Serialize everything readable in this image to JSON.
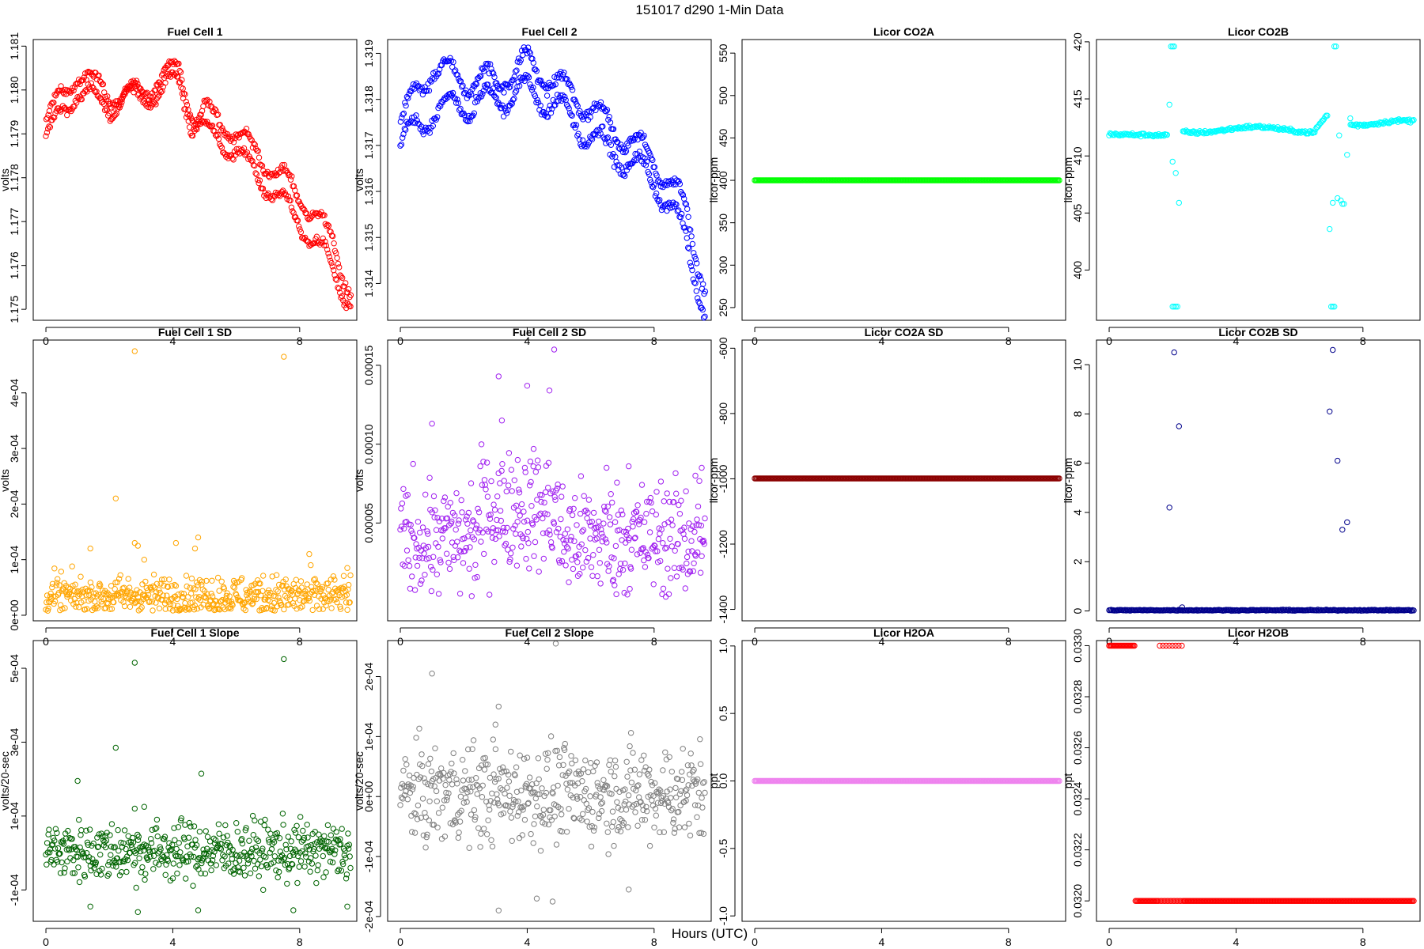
{
  "figure": {
    "title": "151017   d290   1-Min Data",
    "xlabel": "Hours (UTC)"
  },
  "chart_data": [
    {
      "type": "scatter",
      "title": "Fuel Cell 1",
      "ylabel": "volts",
      "color": "#ff0000",
      "xlim": [
        -0.4,
        9.8
      ],
      "xticks": [
        0,
        4,
        8
      ],
      "xtick_labels": [
        "0",
        "4",
        "8"
      ],
      "ylim": [
        1.17475,
        1.18115
      ],
      "yticks": [
        1.175,
        1.176,
        1.177,
        1.178,
        1.179,
        1.18,
        1.181
      ],
      "ytick_labels": [
        "1.175",
        "1.176",
        "1.177",
        "1.178",
        "1.179",
        "1.180",
        "1.181"
      ],
      "gen": {
        "kind": "curve2",
        "x0": 0,
        "x1": 9.6,
        "n": 290,
        "k1": [
          [
            0,
            1.1789
          ],
          [
            1,
            1.18
          ],
          [
            2,
            1.1796
          ],
          [
            3,
            1.18
          ],
          [
            4.2,
            1.1805
          ],
          [
            4.6,
            1.1795
          ],
          [
            5,
            1.1791
          ],
          [
            6,
            1.1786
          ],
          [
            7,
            1.1778
          ],
          [
            8,
            1.177
          ],
          [
            9,
            1.176
          ],
          [
            9.6,
            1.1751
          ]
        ],
        "k2": [
          [
            0,
            1.1793
          ],
          [
            1,
            1.1804
          ],
          [
            2,
            1.1799
          ],
          [
            3,
            1.1798
          ],
          [
            4.2,
            1.1802
          ],
          [
            4.6,
            1.1792
          ],
          [
            5,
            1.1795
          ],
          [
            6,
            1.179
          ],
          [
            7,
            1.1783
          ],
          [
            8,
            1.1776
          ],
          [
            9,
            1.1766
          ],
          [
            9.6,
            1.1754
          ]
        ],
        "osc": 0.00025,
        "noise": 8e-05
      }
    },
    {
      "type": "scatter",
      "title": "Fuel Cell 2",
      "ylabel": "volts",
      "color": "#0000ff",
      "xlim": [
        -0.4,
        9.8
      ],
      "xticks": [
        0,
        4,
        8
      ],
      "xtick_labels": [
        "0",
        "4",
        "8"
      ],
      "ylim": [
        1.3132,
        1.3193
      ],
      "yticks": [
        1.314,
        1.315,
        1.316,
        1.317,
        1.318,
        1.319
      ],
      "ytick_labels": [
        "1.314",
        "1.315",
        "1.316",
        "1.317",
        "1.318",
        "1.319"
      ],
      "gen": {
        "kind": "curve2",
        "x0": 0,
        "x1": 9.6,
        "n": 290,
        "k1": [
          [
            0,
            1.317
          ],
          [
            1,
            1.3177
          ],
          [
            2,
            1.3179
          ],
          [
            3,
            1.318
          ],
          [
            4,
            1.3182
          ],
          [
            5,
            1.3178
          ],
          [
            6,
            1.3172
          ],
          [
            7,
            1.3167
          ],
          [
            8,
            1.3163
          ],
          [
            9,
            1.315
          ],
          [
            9.6,
            1.3134
          ]
        ],
        "k2": [
          [
            0,
            1.3175
          ],
          [
            1,
            1.3187
          ],
          [
            2,
            1.3184
          ],
          [
            3,
            1.3184
          ],
          [
            4,
            1.3188
          ],
          [
            5,
            1.3183
          ],
          [
            6,
            1.3178
          ],
          [
            7,
            1.3172
          ],
          [
            8,
            1.3167
          ],
          [
            9,
            1.3156
          ],
          [
            9.6,
            1.3139
          ]
        ],
        "osc": 0.0003,
        "noise": 0.0001
      }
    },
    {
      "type": "scatter",
      "title": "Licor CO2A",
      "ylabel": "licor-ppm",
      "color": "#00ff00",
      "xlim": [
        -0.4,
        9.8
      ],
      "xticks": [
        0,
        4,
        8
      ],
      "xtick_labels": [
        "0",
        "4",
        "8"
      ],
      "ylim": [
        235,
        566
      ],
      "yticks": [
        250,
        300,
        350,
        400,
        450,
        500,
        550
      ],
      "ytick_labels": [
        "250",
        "300",
        "350",
        "400",
        "450",
        "500",
        "550"
      ],
      "gen": {
        "kind": "const",
        "x0": 0,
        "x1": 9.6,
        "n": 290,
        "v": 400
      }
    },
    {
      "type": "scatter",
      "title": "Licor CO2B",
      "ylabel": "licor-ppm",
      "color": "#00ffff",
      "xlim": [
        -0.4,
        9.8
      ],
      "xticks": [
        0,
        4,
        8
      ],
      "xtick_labels": [
        "0",
        "4",
        "8"
      ],
      "ylim": [
        395.6,
        420.2
      ],
      "yticks": [
        400,
        405,
        410,
        415,
        420
      ],
      "ytick_labels": [
        "400",
        "405",
        "410",
        "415",
        "420"
      ],
      "gen": {
        "kind": "co2b",
        "x0": 0,
        "x1": 9.6,
        "n": 290
      },
      "extra": [
        [
          1.9,
          414.5
        ],
        [
          2.0,
          409.5
        ],
        [
          2.1,
          408.5
        ],
        [
          2.2,
          405.9
        ],
        [
          1.95,
          419.6
        ],
        [
          2.0,
          419.6
        ],
        [
          2.05,
          419.6
        ],
        [
          2.0,
          396.8
        ],
        [
          2.05,
          396.8
        ],
        [
          2.1,
          396.8
        ],
        [
          2.15,
          396.8
        ],
        [
          6.95,
          403.6
        ],
        [
          7.05,
          405.9
        ],
        [
          7.1,
          419.6
        ],
        [
          7.15,
          419.6
        ],
        [
          7.0,
          396.8
        ],
        [
          7.05,
          396.8
        ],
        [
          7.1,
          396.8
        ],
        [
          7.2,
          406.3
        ],
        [
          7.3,
          406.1
        ],
        [
          7.35,
          405.8
        ],
        [
          7.4,
          405.8
        ],
        [
          7.5,
          410.1
        ],
        [
          7.6,
          413.3
        ],
        [
          7.25,
          411.8
        ]
      ]
    },
    {
      "type": "scatter",
      "title": "Fuel Cell 1 SD",
      "ylabel": "volts",
      "color": "#ffa500",
      "xlim": [
        -0.4,
        9.8
      ],
      "xticks": [
        0,
        4,
        8
      ],
      "xtick_labels": [
        "0",
        "4",
        "8"
      ],
      "ylim": [
        -1e-05,
        0.000495
      ],
      "yticks": [
        0,
        0.0001,
        0.0002,
        0.0003,
        0.0004
      ],
      "ytick_labels": [
        "0e+00",
        "1e-04",
        "2e-04",
        "3e-04",
        "4e-04"
      ],
      "gen": {
        "kind": "noise",
        "x0": 0,
        "x1": 9.6,
        "n": 500,
        "base": 3.5e-05,
        "spread": 1.8e-05,
        "min": 8e-06
      },
      "extra": [
        [
          2.8,
          0.000475
        ],
        [
          7.5,
          0.000465
        ],
        [
          2.2,
          0.00021
        ],
        [
          1.4,
          0.00012
        ],
        [
          2.8,
          0.00013
        ],
        [
          2.9,
          0.000125
        ],
        [
          4.1,
          0.00013
        ],
        [
          4.8,
          0.00014
        ],
        [
          4.7,
          0.00012
        ],
        [
          8.3,
          0.00011
        ],
        [
          3.1,
          0.0001
        ],
        [
          9.5,
          8.5e-05
        ]
      ]
    },
    {
      "type": "scatter",
      "title": "Fuel Cell 2 SD",
      "ylabel": "volts",
      "color": "#a020f0",
      "xlim": [
        -0.4,
        9.8
      ],
      "xticks": [
        0,
        4,
        8
      ],
      "xtick_labels": [
        "0",
        "4",
        "8"
      ],
      "ylim": [
        -1.2e-05,
        0.000166
      ],
      "yticks": [
        5e-05,
        0.0001,
        0.00015
      ],
      "ytick_labels": [
        "0.00005",
        "0.00010",
        "0.00015"
      ],
      "gen": {
        "kind": "noise",
        "x0": 0,
        "x1": 9.6,
        "n": 500,
        "base": 4e-05,
        "spread": 1.8e-05,
        "min": 3e-06,
        "bump": [
          2.5,
          5.0,
          1.8e-05
        ]
      },
      "extra": [
        [
          4.85,
          0.00016
        ],
        [
          3.1,
          0.000143
        ],
        [
          4.0,
          0.000137
        ],
        [
          4.7,
          0.000134
        ],
        [
          1.0,
          0.000113
        ],
        [
          3.2,
          0.000115
        ],
        [
          4.2,
          9.7e-05
        ],
        [
          6.5,
          8.5e-05
        ],
        [
          7.2,
          8.6e-05
        ],
        [
          9.3,
          8e-05
        ],
        [
          9.5,
          8.5e-05
        ],
        [
          3.7,
          9e-05
        ]
      ]
    },
    {
      "type": "scatter",
      "title": "Licor CO2A SD",
      "ylabel": "licor-ppm",
      "color": "#8b0000",
      "xlim": [
        -0.4,
        9.8
      ],
      "xticks": [
        0,
        4,
        8
      ],
      "xtick_labels": [
        "0",
        "4",
        "8"
      ],
      "ylim": [
        -1435,
        -575
      ],
      "yticks": [
        -1400,
        -1200,
        -1000,
        -800,
        -600
      ],
      "ytick_labels": [
        "-1400",
        "-1200",
        "-1000",
        "-800",
        "-600"
      ],
      "gen": {
        "kind": "const",
        "x0": 0,
        "x1": 9.6,
        "n": 290,
        "v": -999
      }
    },
    {
      "type": "scatter",
      "title": "Licor CO2B SD",
      "ylabel": "licor-ppm",
      "color": "#00008b",
      "xlim": [
        -0.4,
        9.8
      ],
      "xticks": [
        0,
        4,
        8
      ],
      "xtick_labels": [
        "0",
        "4",
        "8"
      ],
      "ylim": [
        -0.4,
        11.0
      ],
      "yticks": [
        0,
        2,
        4,
        6,
        8,
        10
      ],
      "ytick_labels": [
        "0",
        "2",
        "4",
        "6",
        "8",
        "10"
      ],
      "gen": {
        "kind": "noise",
        "x0": 0,
        "x1": 9.6,
        "n": 290,
        "base": 0.03,
        "spread": 0.01,
        "min": 0.0
      },
      "extra": [
        [
          1.9,
          4.2
        ],
        [
          2.05,
          10.5
        ],
        [
          2.2,
          7.5
        ],
        [
          6.95,
          8.1
        ],
        [
          7.05,
          10.6
        ],
        [
          7.2,
          6.1
        ],
        [
          7.35,
          3.3
        ],
        [
          7.5,
          3.6
        ],
        [
          2.3,
          0.15
        ]
      ]
    },
    {
      "type": "scatter",
      "title": "Fuel Cell 1 Slope",
      "ylabel": "volts/20-sec",
      "color": "#006400",
      "xlim": [
        -0.4,
        9.8
      ],
      "xticks": [
        0,
        4,
        8
      ],
      "xtick_labels": [
        "0",
        "4",
        "8"
      ],
      "ylim": [
        -0.000185,
        0.000575
      ],
      "yticks": [
        -0.0001,
        0.0001,
        0.0003,
        0.0005
      ],
      "ytick_labels": [
        "-1e-04",
        "1e-04",
        "3e-04",
        "5e-04"
      ],
      "gen": {
        "kind": "noise",
        "x0": 0,
        "x1": 9.6,
        "n": 500,
        "base": 5e-06,
        "spread": 4e-05,
        "min": -0.00012
      },
      "extra": [
        [
          2.8,
          0.000515
        ],
        [
          7.5,
          0.000525
        ],
        [
          2.2,
          0.000285
        ],
        [
          4.9,
          0.000215
        ],
        [
          1.0,
          0.000195
        ],
        [
          3.1,
          0.000125
        ],
        [
          2.8,
          0.00012
        ],
        [
          1.4,
          -0.000145
        ],
        [
          2.9,
          -0.00016
        ],
        [
          4.8,
          -0.000155
        ],
        [
          7.8,
          -0.000155
        ],
        [
          9.5,
          -0.000145
        ]
      ]
    },
    {
      "type": "scatter",
      "title": "Fuel Cell 2 Slope",
      "ylabel": "volts/20-sec",
      "color": "#808080",
      "xlim": [
        -0.4,
        9.8
      ],
      "xticks": [
        0,
        4,
        8
      ],
      "xtick_labels": [
        "0",
        "4",
        "8"
      ],
      "ylim": [
        -0.000208,
        0.00026
      ],
      "yticks": [
        -0.0002,
        -0.0001,
        0,
        0.0001,
        0.0002
      ],
      "ytick_labels": [
        "-2e-04",
        "-1e-04",
        "0e+00",
        "1e-04",
        "2e-04"
      ],
      "gen": {
        "kind": "noise",
        "x0": 0,
        "x1": 9.6,
        "n": 500,
        "base": 5e-06,
        "spread": 4e-05,
        "min": -0.00012
      },
      "extra": [
        [
          4.9,
          0.000255
        ],
        [
          1.0,
          0.000205
        ],
        [
          3.1,
          0.00015
        ],
        [
          4.3,
          -0.00017
        ],
        [
          4.8,
          -0.000175
        ],
        [
          7.2,
          -0.000155
        ],
        [
          3.1,
          -0.00019
        ],
        [
          0.8,
          -8.5e-05
        ],
        [
          3.0,
          0.00012
        ]
      ]
    },
    {
      "type": "scatter",
      "title": "Licor H2OA",
      "ylabel": "ppt",
      "color": "#ee82ee",
      "xlim": [
        -0.4,
        9.8
      ],
      "xticks": [
        0,
        4,
        8
      ],
      "xtick_labels": [
        "0",
        "4",
        "8"
      ],
      "ylim": [
        -1.04,
        1.04
      ],
      "yticks": [
        -1.0,
        -0.5,
        0.0,
        0.5,
        1.0
      ],
      "ytick_labels": [
        "-1.0",
        "-0.5",
        "0.0",
        "0.5",
        "1.0"
      ],
      "gen": {
        "kind": "const",
        "x0": 0,
        "x1": 9.6,
        "n": 290,
        "v": 0
      }
    },
    {
      "type": "scatter",
      "title": "Licor H2OB",
      "ylabel": "ppt",
      "color": "#ff0000",
      "xlim": [
        -0.4,
        9.8
      ],
      "xticks": [
        0,
        4,
        8
      ],
      "xtick_labels": [
        "0",
        "4",
        "8"
      ],
      "ylim": [
        0.03192,
        0.03302
      ],
      "yticks": [
        0.032,
        0.0322,
        0.0324,
        0.0326,
        0.0328,
        0.033
      ],
      "ytick_labels": [
        "0.0320",
        "0.0322",
        "0.0324",
        "0.0326",
        "0.0328",
        "0.0330"
      ],
      "gen": {
        "kind": "h2ob",
        "x0": 0,
        "x1": 9.6,
        "n": 290
      }
    }
  ]
}
